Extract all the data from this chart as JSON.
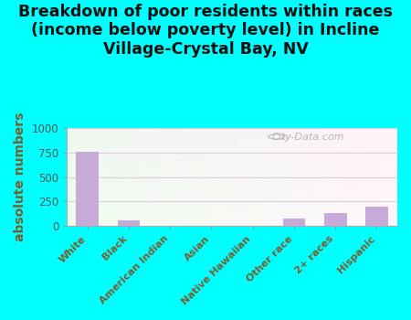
{
  "title": "Breakdown of poor residents within races\n(income below poverty level) in Incline\nVillage-Crystal Bay, NV",
  "categories": [
    "White",
    "Black",
    "American Indian",
    "Asian",
    "Native Hawaiian",
    "Other race",
    "2+ races",
    "Hispanic"
  ],
  "values": [
    760,
    55,
    0,
    0,
    0,
    75,
    130,
    195
  ],
  "bar_color": "#c8aad8",
  "ylabel": "absolute numbers",
  "ylim": [
    0,
    1000
  ],
  "yticks": [
    0,
    250,
    500,
    750,
    1000
  ],
  "background_outer": "#00ffff",
  "title_fontsize": 12.5,
  "ylabel_fontsize": 10,
  "ylabel_color": "#7a5c2e",
  "xtick_color": "#7a5c2e",
  "ytick_color": "#555555",
  "grid_color": "#ddccdd",
  "watermark": "City-Data.com"
}
